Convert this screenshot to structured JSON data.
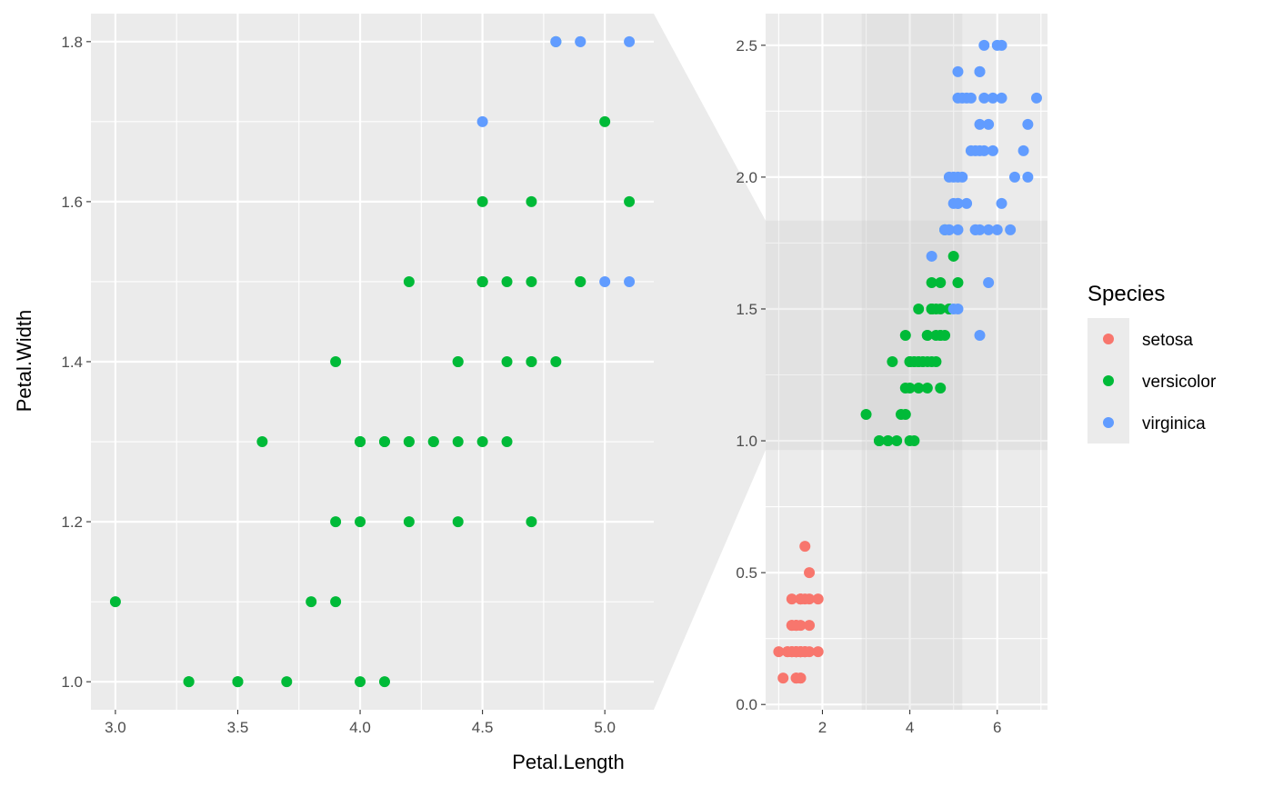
{
  "chart_data": {
    "type": "scatter",
    "x_label": "Petal.Length",
    "y_label": "Petal.Width",
    "colors": {
      "setosa": "#F8766D",
      "versicolor": "#00BA38",
      "virginica": "#619CFF"
    },
    "legend": {
      "title": "Species",
      "position": "right",
      "entries": [
        "setosa",
        "versicolor",
        "virginica"
      ]
    },
    "zoom_panel": {
      "xlim": [
        2.9,
        5.2
      ],
      "ylim": [
        0.965,
        1.835
      ],
      "x_ticks": [
        "3.0",
        "3.5",
        "4.0",
        "4.5",
        "5.0"
      ],
      "y_ticks": [
        "1.0",
        "1.2",
        "1.4",
        "1.6",
        "1.8"
      ],
      "grid": true
    },
    "full_panel": {
      "xlim": [
        0.7,
        7.15
      ],
      "ylim": [
        -0.02,
        2.62
      ],
      "x_ticks": [
        "2",
        "4",
        "6"
      ],
      "y_ticks": [
        "0.0",
        "0.5",
        "1.0",
        "1.5",
        "2.0",
        "2.5"
      ],
      "grid": true,
      "zoom_region": {
        "x": [
          2.9,
          5.2
        ],
        "y": [
          0.965,
          1.835
        ]
      }
    },
    "series": [
      {
        "name": "setosa",
        "points": [
          [
            1.4,
            0.2
          ],
          [
            1.4,
            0.2
          ],
          [
            1.3,
            0.2
          ],
          [
            1.5,
            0.2
          ],
          [
            1.4,
            0.2
          ],
          [
            1.7,
            0.4
          ],
          [
            1.4,
            0.3
          ],
          [
            1.5,
            0.2
          ],
          [
            1.4,
            0.2
          ],
          [
            1.5,
            0.1
          ],
          [
            1.5,
            0.2
          ],
          [
            1.6,
            0.2
          ],
          [
            1.4,
            0.1
          ],
          [
            1.1,
            0.1
          ],
          [
            1.2,
            0.2
          ],
          [
            1.5,
            0.4
          ],
          [
            1.3,
            0.4
          ],
          [
            1.4,
            0.3
          ],
          [
            1.7,
            0.3
          ],
          [
            1.5,
            0.3
          ],
          [
            1.7,
            0.2
          ],
          [
            1.5,
            0.4
          ],
          [
            1.0,
            0.2
          ],
          [
            1.7,
            0.5
          ],
          [
            1.9,
            0.2
          ],
          [
            1.6,
            0.2
          ],
          [
            1.6,
            0.4
          ],
          [
            1.5,
            0.2
          ],
          [
            1.4,
            0.2
          ],
          [
            1.6,
            0.2
          ],
          [
            1.6,
            0.2
          ],
          [
            1.5,
            0.4
          ],
          [
            1.5,
            0.1
          ],
          [
            1.4,
            0.2
          ],
          [
            1.5,
            0.2
          ],
          [
            1.2,
            0.2
          ],
          [
            1.3,
            0.2
          ],
          [
            1.4,
            0.1
          ],
          [
            1.3,
            0.2
          ],
          [
            1.5,
            0.2
          ],
          [
            1.3,
            0.3
          ],
          [
            1.3,
            0.3
          ],
          [
            1.3,
            0.2
          ],
          [
            1.6,
            0.6
          ],
          [
            1.9,
            0.4
          ],
          [
            1.4,
            0.3
          ],
          [
            1.6,
            0.2
          ],
          [
            1.4,
            0.2
          ],
          [
            1.5,
            0.2
          ],
          [
            1.4,
            0.2
          ]
        ]
      },
      {
        "name": "versicolor",
        "points": [
          [
            4.7,
            1.4
          ],
          [
            4.5,
            1.5
          ],
          [
            4.9,
            1.5
          ],
          [
            4.0,
            1.3
          ],
          [
            4.6,
            1.5
          ],
          [
            4.5,
            1.3
          ],
          [
            4.7,
            1.6
          ],
          [
            3.3,
            1.0
          ],
          [
            4.6,
            1.3
          ],
          [
            3.9,
            1.4
          ],
          [
            3.5,
            1.0
          ],
          [
            4.2,
            1.5
          ],
          [
            4.0,
            1.0
          ],
          [
            4.7,
            1.4
          ],
          [
            3.6,
            1.3
          ],
          [
            4.4,
            1.4
          ],
          [
            4.5,
            1.5
          ],
          [
            4.1,
            1.0
          ],
          [
            4.5,
            1.5
          ],
          [
            3.9,
            1.1
          ],
          [
            4.8,
            1.8
          ],
          [
            4.0,
            1.3
          ],
          [
            4.9,
            1.5
          ],
          [
            4.7,
            1.2
          ],
          [
            4.3,
            1.3
          ],
          [
            4.4,
            1.4
          ],
          [
            4.8,
            1.4
          ],
          [
            5.0,
            1.7
          ],
          [
            4.5,
            1.5
          ],
          [
            3.5,
            1.0
          ],
          [
            3.8,
            1.1
          ],
          [
            3.7,
            1.0
          ],
          [
            3.9,
            1.2
          ],
          [
            5.1,
            1.6
          ],
          [
            4.5,
            1.5
          ],
          [
            4.5,
            1.6
          ],
          [
            4.7,
            1.5
          ],
          [
            4.4,
            1.3
          ],
          [
            4.1,
            1.3
          ],
          [
            4.0,
            1.3
          ],
          [
            4.4,
            1.2
          ],
          [
            4.6,
            1.4
          ],
          [
            4.0,
            1.2
          ],
          [
            3.3,
            1.0
          ],
          [
            4.2,
            1.3
          ],
          [
            4.2,
            1.2
          ],
          [
            4.2,
            1.3
          ],
          [
            4.3,
            1.3
          ],
          [
            3.0,
            1.1
          ],
          [
            4.1,
            1.3
          ]
        ]
      },
      {
        "name": "virginica",
        "points": [
          [
            6.0,
            2.5
          ],
          [
            5.1,
            1.9
          ],
          [
            5.9,
            2.1
          ],
          [
            5.6,
            1.8
          ],
          [
            5.8,
            2.2
          ],
          [
            6.6,
            2.1
          ],
          [
            4.5,
            1.7
          ],
          [
            6.3,
            1.8
          ],
          [
            5.8,
            1.8
          ],
          [
            6.1,
            2.5
          ],
          [
            5.1,
            2.0
          ],
          [
            5.3,
            1.9
          ],
          [
            5.5,
            2.1
          ],
          [
            5.0,
            2.0
          ],
          [
            5.1,
            2.4
          ],
          [
            5.3,
            2.3
          ],
          [
            5.5,
            1.8
          ],
          [
            6.7,
            2.2
          ],
          [
            6.9,
            2.3
          ],
          [
            5.0,
            1.5
          ],
          [
            5.7,
            2.3
          ],
          [
            4.9,
            2.0
          ],
          [
            6.7,
            2.0
          ],
          [
            4.9,
            1.8
          ],
          [
            5.7,
            2.1
          ],
          [
            6.0,
            1.8
          ],
          [
            4.8,
            1.8
          ],
          [
            4.9,
            1.8
          ],
          [
            5.6,
            2.1
          ],
          [
            5.8,
            1.6
          ],
          [
            6.1,
            1.9
          ],
          [
            6.4,
            2.0
          ],
          [
            5.6,
            2.2
          ],
          [
            5.1,
            1.5
          ],
          [
            5.6,
            1.4
          ],
          [
            6.1,
            2.3
          ],
          [
            5.6,
            2.4
          ],
          [
            5.5,
            1.8
          ],
          [
            4.8,
            1.8
          ],
          [
            5.4,
            2.1
          ],
          [
            5.6,
            2.4
          ],
          [
            5.1,
            2.3
          ],
          [
            5.1,
            1.9
          ],
          [
            5.9,
            2.3
          ],
          [
            5.7,
            2.5
          ],
          [
            5.2,
            2.3
          ],
          [
            5.0,
            1.9
          ],
          [
            5.2,
            2.0
          ],
          [
            5.4,
            2.3
          ],
          [
            5.1,
            1.8
          ]
        ]
      }
    ]
  }
}
